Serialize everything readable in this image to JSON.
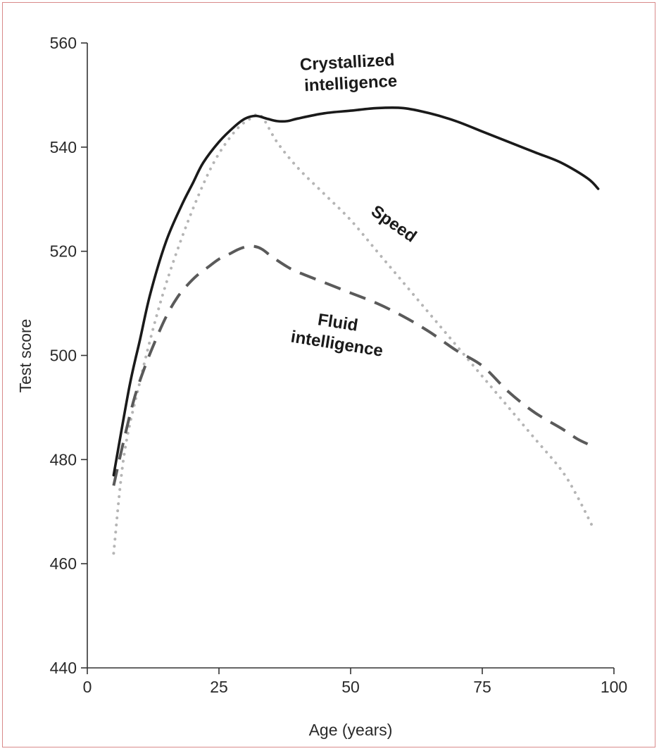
{
  "chart_data": {
    "type": "line",
    "title": "",
    "xlabel": "Age (years)",
    "ylabel": "Test score",
    "xlim": [
      0,
      100
    ],
    "ylim": [
      440,
      560
    ],
    "xticks": [
      0,
      25,
      50,
      75,
      100
    ],
    "yticks": [
      440,
      460,
      480,
      500,
      520,
      540,
      560
    ],
    "grid": false,
    "legend": "none (series labeled directly on the plot)",
    "series": [
      {
        "name": "Crystallized intelligence",
        "label_lines": [
          "Crystallized",
          "intelligence"
        ],
        "style": "solid",
        "color": "#1a1a1a",
        "x": [
          5,
          8,
          10,
          12,
          15,
          18,
          20,
          22,
          25,
          28,
          30,
          32,
          34,
          36,
          38,
          40,
          45,
          50,
          55,
          60,
          65,
          70,
          75,
          80,
          85,
          90,
          95,
          97
        ],
        "y": [
          477,
          494,
          503,
          512,
          522,
          529,
          533,
          537,
          541,
          544,
          545.5,
          546,
          545.5,
          545,
          545,
          545.5,
          546.5,
          547,
          547.5,
          547.5,
          546.5,
          545,
          543,
          541,
          539,
          537,
          534,
          532
        ]
      },
      {
        "name": "Speed",
        "label_lines": [
          "Speed"
        ],
        "style": "dotted",
        "color": "#b5b5b5",
        "x": [
          5,
          7,
          10,
          13,
          16,
          20,
          24,
          28,
          31,
          33,
          36,
          40,
          45,
          50,
          55,
          60,
          65,
          70,
          75,
          80,
          85,
          90,
          93,
          96
        ],
        "y": [
          462,
          481,
          495,
          507,
          517,
          528,
          537,
          543,
          545.5,
          546,
          541,
          536,
          531,
          526,
          520,
          514,
          508,
          502,
          496,
          490,
          484,
          478,
          473,
          467
        ]
      },
      {
        "name": "Fluid intelligence",
        "label_lines": [
          "Fluid",
          "intelligence"
        ],
        "style": "dashed",
        "color": "#5a5a5a",
        "x": [
          5,
          7,
          9,
          11,
          13,
          15,
          17,
          19,
          21,
          23,
          25,
          27,
          29,
          31,
          33,
          35,
          38,
          40,
          45,
          50,
          55,
          60,
          65,
          70,
          75,
          80,
          85,
          90,
          93,
          95
        ],
        "y": [
          475,
          484,
          492,
          498,
          503,
          507.5,
          511,
          513.5,
          515.5,
          517,
          518.5,
          519.5,
          520.5,
          521,
          520.5,
          519,
          517,
          516,
          514,
          512,
          510,
          507.5,
          504.5,
          501,
          498,
          493,
          489,
          486,
          484,
          483
        ]
      }
    ]
  }
}
